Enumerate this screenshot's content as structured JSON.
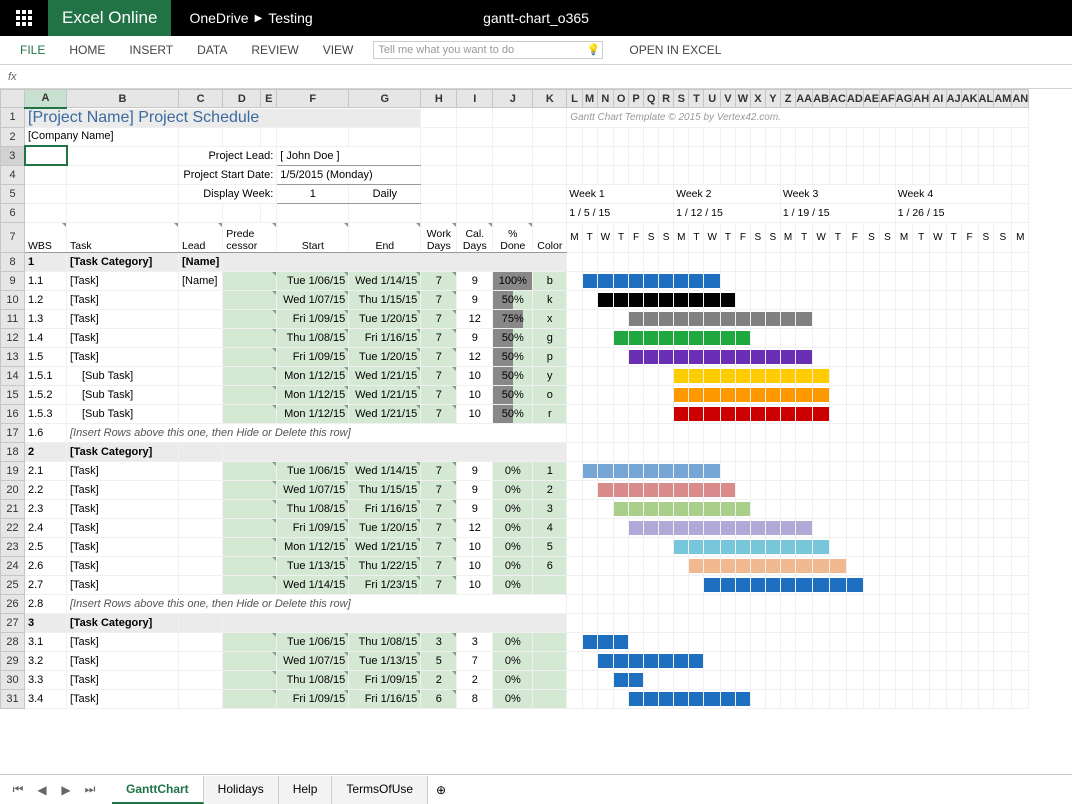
{
  "app": {
    "brand": "Excel Online",
    "launcher": "app-launcher"
  },
  "breadcrumb": {
    "a": "OneDrive",
    "b": "Testing"
  },
  "filename": "gantt-chart_o365",
  "ribbon": {
    "file": "FILE",
    "home": "HOME",
    "insert": "INSERT",
    "data": "DATA",
    "review": "REVIEW",
    "view": "VIEW",
    "tellme_placeholder": "Tell me what you want to do",
    "open_excel": "OPEN IN EXCEL"
  },
  "fx_label": "fx",
  "credit": "Gantt Chart Template © 2015 by Vertex42.com.",
  "layout": {
    "cols": {
      "row_hdr_w": 24,
      "A": 42,
      "B": 112,
      "C": 44,
      "D": 38,
      "E": 16,
      "F": 72,
      "G": 72,
      "H": 36,
      "I": 36,
      "J": 40,
      "K": 34,
      "day_w": 15
    },
    "day_letters": [
      "M",
      "T",
      "W",
      "T",
      "F",
      "S",
      "S"
    ]
  },
  "title": "[Project Name] Project Schedule",
  "company": "[Company Name]",
  "meta": {
    "lead_label": "Project Lead:",
    "lead_value": "[ John Doe ]",
    "start_label": "Project Start Date:",
    "start_value": "1/5/2015 (Monday)",
    "week_label": "Display Week:",
    "week_value": "1",
    "week_mode": "Daily"
  },
  "weeks": [
    {
      "label": "Week 1",
      "date": "1 / 5 / 15"
    },
    {
      "label": "Week 2",
      "date": "1 / 12 / 15"
    },
    {
      "label": "Week 3",
      "date": "1 / 19 / 15"
    },
    {
      "label": "Week 4",
      "date": "1 / 26 / 15"
    }
  ],
  "col_hdr": {
    "wbs": "WBS",
    "task": "Task",
    "lead": "Lead",
    "pred": "Prede\ncessor",
    "start": "Start",
    "end": "End",
    "wd": "Work\nDays",
    "cd": "Cal.\nDays",
    "done": "%\nDone",
    "color": "Color"
  },
  "col_letters": [
    "A",
    "B",
    "C",
    "D",
    "E",
    "F",
    "G",
    "H",
    "I",
    "J",
    "K",
    "L",
    "M",
    "N",
    "O",
    "P",
    "Q",
    "R",
    "S",
    "T",
    "U",
    "V",
    "W",
    "X",
    "Y",
    "Z",
    "AA",
    "AB",
    "AC",
    "AD",
    "AE",
    "AF",
    "AG",
    "AH",
    "AI",
    "AJ",
    "AK",
    "AL",
    "AM",
    "AN"
  ],
  "rows": [
    {
      "r": 8,
      "type": "cat",
      "wbs": "1",
      "task": "[Task Category]",
      "lead": "[Name]"
    },
    {
      "r": 9,
      "wbs": "1.1",
      "task": "[Task]",
      "lead": "[Name]",
      "start": "Tue 1/06/15",
      "end": "Wed 1/14/15",
      "wd": "7",
      "cd": "9",
      "done": "100%",
      "donep": 100,
      "color": "b",
      "bar": {
        "s": 1,
        "len": 9,
        "hex": "#1f6fc1"
      }
    },
    {
      "r": 10,
      "wbs": "1.2",
      "task": "[Task]",
      "start": "Wed 1/07/15",
      "end": "Thu 1/15/15",
      "wd": "7",
      "cd": "9",
      "done": "50%",
      "donep": 50,
      "color": "k",
      "bar": {
        "s": 2,
        "len": 9,
        "hex": "#000000"
      }
    },
    {
      "r": 11,
      "wbs": "1.3",
      "task": "[Task]",
      "start": "Fri 1/09/15",
      "end": "Tue 1/20/15",
      "wd": "7",
      "cd": "12",
      "done": "75%",
      "donep": 75,
      "color": "x",
      "bar": {
        "s": 4,
        "len": 12,
        "hex": "#808080"
      }
    },
    {
      "r": 12,
      "wbs": "1.4",
      "task": "[Task]",
      "start": "Thu 1/08/15",
      "end": "Fri 1/16/15",
      "wd": "7",
      "cd": "9",
      "done": "50%",
      "donep": 50,
      "color": "g",
      "bar": {
        "s": 3,
        "len": 9,
        "hex": "#1fa83f"
      }
    },
    {
      "r": 13,
      "wbs": "1.5",
      "task": "[Task]",
      "start": "Fri 1/09/15",
      "end": "Tue 1/20/15",
      "wd": "7",
      "cd": "12",
      "done": "50%",
      "donep": 50,
      "color": "p",
      "bar": {
        "s": 4,
        "len": 12,
        "hex": "#6a2fb5"
      }
    },
    {
      "r": 14,
      "wbs": "1.5.1",
      "task": "[Sub Task]",
      "indent": 1,
      "start": "Mon 1/12/15",
      "end": "Wed 1/21/15",
      "wd": "7",
      "cd": "10",
      "done": "50%",
      "donep": 50,
      "color": "y",
      "bar": {
        "s": 7,
        "len": 10,
        "hex": "#ffcc00"
      }
    },
    {
      "r": 15,
      "wbs": "1.5.2",
      "task": "[Sub Task]",
      "indent": 1,
      "start": "Mon 1/12/15",
      "end": "Wed 1/21/15",
      "wd": "7",
      "cd": "10",
      "done": "50%",
      "donep": 50,
      "color": "o",
      "bar": {
        "s": 7,
        "len": 10,
        "hex": "#ff9900"
      }
    },
    {
      "r": 16,
      "wbs": "1.5.3",
      "task": "[Sub Task]",
      "indent": 1,
      "start": "Mon 1/12/15",
      "end": "Wed 1/21/15",
      "wd": "7",
      "cd": "10",
      "done": "50%",
      "donep": 50,
      "color": "r",
      "bar": {
        "s": 7,
        "len": 10,
        "hex": "#cc0000"
      }
    },
    {
      "r": 17,
      "wbs": "1.6",
      "type": "note",
      "task": "[Insert Rows above this one, then Hide or Delete this row]"
    },
    {
      "r": 18,
      "type": "cat",
      "wbs": "2",
      "task": "[Task Category]"
    },
    {
      "r": 19,
      "wbs": "2.1",
      "task": "[Task]",
      "start": "Tue 1/06/15",
      "end": "Wed 1/14/15",
      "wd": "7",
      "cd": "9",
      "done": "0%",
      "donep": 0,
      "color": "1",
      "bar": {
        "s": 1,
        "len": 9,
        "hex": "#76a6d6"
      }
    },
    {
      "r": 20,
      "wbs": "2.2",
      "task": "[Task]",
      "start": "Wed 1/07/15",
      "end": "Thu 1/15/15",
      "wd": "7",
      "cd": "9",
      "done": "0%",
      "donep": 0,
      "color": "2",
      "bar": {
        "s": 2,
        "len": 9,
        "hex": "#d98b8b"
      }
    },
    {
      "r": 21,
      "wbs": "2.3",
      "task": "[Task]",
      "start": "Thu 1/08/15",
      "end": "Fri 1/16/15",
      "wd": "7",
      "cd": "9",
      "done": "0%",
      "donep": 0,
      "color": "3",
      "bar": {
        "s": 3,
        "len": 9,
        "hex": "#a9cf8a"
      }
    },
    {
      "r": 22,
      "wbs": "2.4",
      "task": "[Task]",
      "start": "Fri 1/09/15",
      "end": "Tue 1/20/15",
      "wd": "7",
      "cd": "12",
      "done": "0%",
      "donep": 0,
      "color": "4",
      "bar": {
        "s": 4,
        "len": 12,
        "hex": "#b0a8d6"
      }
    },
    {
      "r": 23,
      "wbs": "2.5",
      "task": "[Task]",
      "start": "Mon 1/12/15",
      "end": "Wed 1/21/15",
      "wd": "7",
      "cd": "10",
      "done": "0%",
      "donep": 0,
      "color": "5",
      "bar": {
        "s": 7,
        "len": 10,
        "hex": "#77c6d9"
      }
    },
    {
      "r": 24,
      "wbs": "2.6",
      "task": "[Task]",
      "start": "Tue 1/13/15",
      "end": "Thu 1/22/15",
      "wd": "7",
      "cd": "10",
      "done": "0%",
      "donep": 0,
      "color": "6",
      "bar": {
        "s": 8,
        "len": 10,
        "hex": "#f1b98f"
      }
    },
    {
      "r": 25,
      "wbs": "2.7",
      "task": "[Task]",
      "start": "Wed 1/14/15",
      "end": "Fri 1/23/15",
      "wd": "7",
      "cd": "10",
      "done": "0%",
      "donep": 0,
      "color": "",
      "bar": {
        "s": 9,
        "len": 10,
        "hex": "#1f6fc1"
      }
    },
    {
      "r": 26,
      "wbs": "2.8",
      "type": "note",
      "task": "[Insert Rows above this one, then Hide or Delete this row]"
    },
    {
      "r": 27,
      "type": "cat",
      "wbs": "3",
      "task": "[Task Category]"
    },
    {
      "r": 28,
      "wbs": "3.1",
      "task": "[Task]",
      "start": "Tue 1/06/15",
      "end": "Thu 1/08/15",
      "wd": "3",
      "cd": "3",
      "done": "0%",
      "donep": 0,
      "bar": {
        "s": 1,
        "len": 3,
        "hex": "#1f6fc1"
      }
    },
    {
      "r": 29,
      "wbs": "3.2",
      "task": "[Task]",
      "start": "Wed 1/07/15",
      "end": "Tue 1/13/15",
      "wd": "5",
      "cd": "7",
      "done": "0%",
      "donep": 0,
      "bar": {
        "s": 2,
        "len": 7,
        "hex": "#1f6fc1"
      }
    },
    {
      "r": 30,
      "wbs": "3.3",
      "task": "[Task]",
      "start": "Thu 1/08/15",
      "end": "Fri 1/09/15",
      "wd": "2",
      "cd": "2",
      "done": "0%",
      "donep": 0,
      "bar": {
        "s": 3,
        "len": 2,
        "hex": "#1f6fc1"
      }
    },
    {
      "r": 31,
      "wbs": "3.4",
      "task": "[Task]",
      "start": "Fri 1/09/15",
      "end": "Fri 1/16/15",
      "wd": "6",
      "cd": "8",
      "done": "0%",
      "donep": 0,
      "bar": {
        "s": 4,
        "len": 8,
        "hex": "#1f6fc1"
      }
    }
  ],
  "sheet_tabs": {
    "active": "GanttChart",
    "tabs": [
      "GanttChart",
      "Holidays",
      "Help",
      "TermsOfUse"
    ]
  }
}
